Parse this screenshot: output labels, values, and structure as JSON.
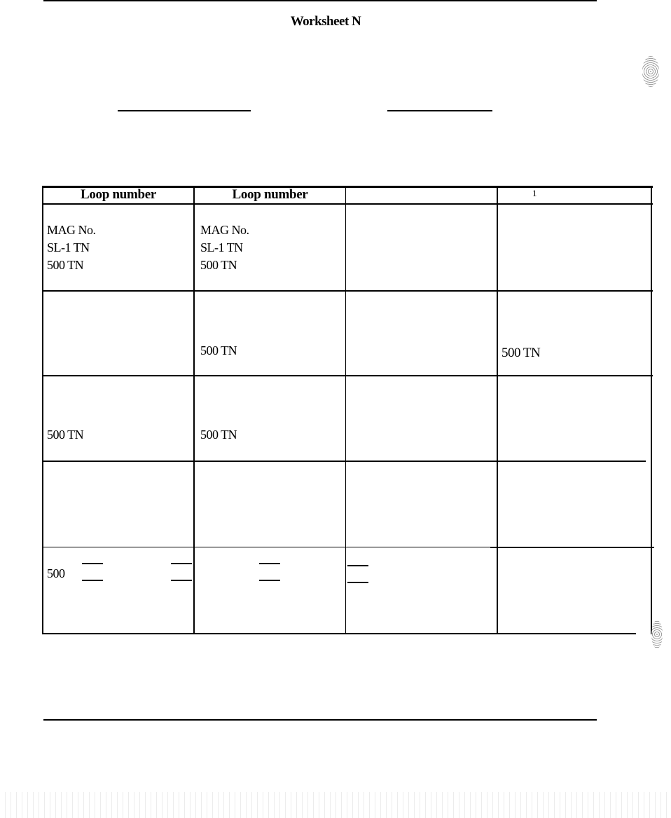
{
  "document": {
    "title": "Worksheet N",
    "table": {
      "headers": [
        "Loop number",
        "Loop number",
        "",
        "1"
      ],
      "rows": [
        {
          "cells": [
            [
              "MAG No.",
              "SL-1 TN",
              "500 TN"
            ],
            [
              "MAG No.",
              "SL-1 TN",
              "500 TN"
            ],
            [],
            []
          ]
        },
        {
          "cells": [
            [],
            [
              "500 TN"
            ],
            [],
            [
              "500 TN"
            ]
          ]
        },
        {
          "cells": [
            [
              "500 TN"
            ],
            [
              "500 TN"
            ],
            [],
            []
          ]
        },
        {
          "cells": [
            [],
            [],
            [],
            []
          ]
        },
        {
          "cells": [
            [
              "500"
            ],
            [],
            [],
            []
          ]
        }
      ]
    }
  }
}
